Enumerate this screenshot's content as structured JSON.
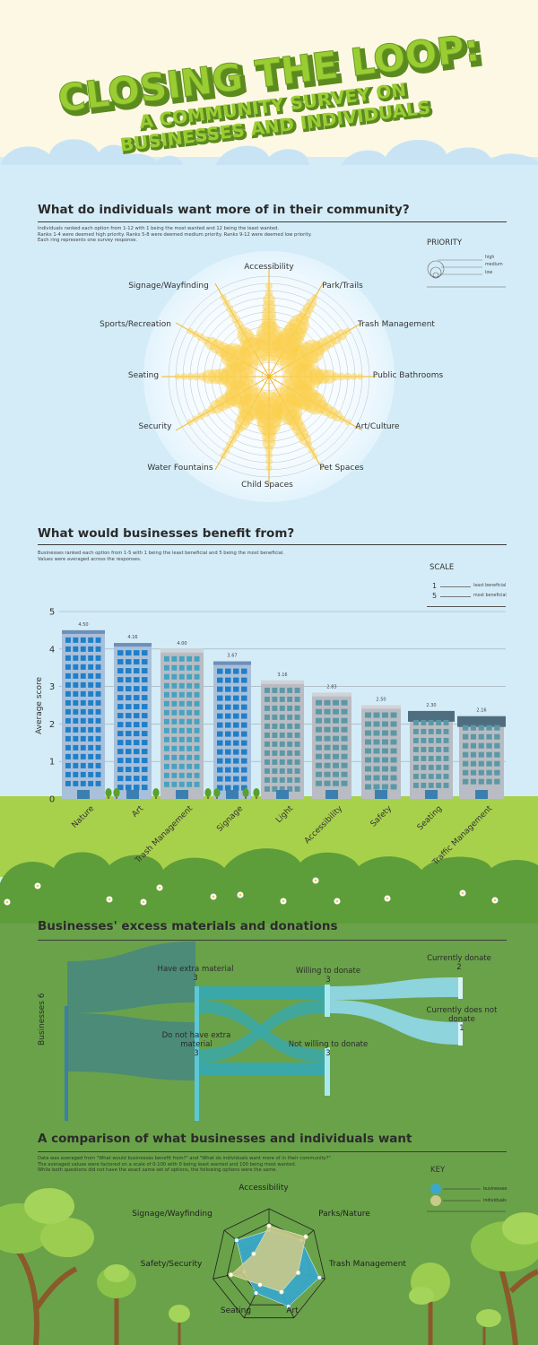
{
  "title": {
    "line1": "CLOSING THE LOOP:",
    "line2": "A COMMUNITY SURVEY ON",
    "line3": "BUSINESSES AND INDIVIDUALS"
  },
  "individuals": {
    "title": "What do individuals want more of in their community?",
    "note": "Individuals ranked each option from 1-12 with 1 being the most wanted and 12 being the least wanted.\nRanks 1-4 were deemed high priority. Ranks 5-8 were deemed medium priority. Ranks 9-12 were deemed low priority.\nEach ring represents one survey response.",
    "key_title": "PRIORITY",
    "key_items": [
      "high",
      "medium",
      "low"
    ],
    "colors": {
      "glow": "#ffffff",
      "petal": "#fcd04b",
      "stroke": "#f2b420"
    }
  },
  "businesses": {
    "title": "What would businesses benefit from?",
    "note": "Businesses ranked each option from 1-5 with 1 being the least beneficial and 5 being the most beneficial.\nValues were averaged across the responses.",
    "key_title": "SCALE",
    "key_items": [
      {
        "num": "1",
        "label": "least beneficial"
      },
      {
        "num": "5",
        "label": "most beneficial"
      }
    ],
    "colors": {
      "ground": "#a8d14b",
      "building_blue": "#1f7fc9",
      "building_grey": "#b9bcc3"
    }
  },
  "donations": {
    "title": "Businesses' excess materials and donations",
    "source_label": "Businesses",
    "source_value": "6",
    "nodes": [
      {
        "label": "Have extra material",
        "value": "3"
      },
      {
        "label": "Do not have extra material",
        "value": "3"
      },
      {
        "label": "Willing to donate",
        "value": "3"
      },
      {
        "label": "Not willing to donate",
        "value": "3"
      },
      {
        "label": "Currently donate",
        "value": "2"
      },
      {
        "label": "Currently does not donate",
        "value": "1"
      }
    ],
    "colors": {
      "bg": "#6aa24a",
      "flow_dark": "#4a8a7a",
      "flow_mid": "#3aa8a8",
      "flow_light": "#8ed4dc"
    }
  },
  "comparison": {
    "title": "A comparison of what businesses and individuals want",
    "note": "Data was averaged from \"What would businesses benefit from?\" and \"What do individuals want more of in their community?\"\nThe averaged values were factored on a scale of 0-100 with 0 being least wanted and 100 being most wanted.\nWhile both questions did not have the exact same set of options, the following options were the same.",
    "key_title": "KEY",
    "key_items": [
      "businesses",
      "individuals"
    ],
    "colors": {
      "businesses": "#3aa8c8",
      "individuals": "#c9c98a"
    }
  },
  "chart_data": [
    {
      "type": "radial",
      "categories": [
        "Accessibility",
        "Park/Trails",
        "Trash Management",
        "Public Bathrooms",
        "Art/Culture",
        "Pet Spaces",
        "Child Spaces",
        "Water Fountains",
        "Security",
        "Seating",
        "Sports/Recreation",
        "Signage/Wayfinding"
      ],
      "series": [
        {
          "name": "high",
          "values": [
            3,
            6,
            4,
            3,
            5,
            3,
            4,
            2,
            2,
            2,
            3,
            1
          ]
        },
        {
          "name": "medium",
          "values": [
            5,
            4,
            5,
            3,
            4,
            5,
            3,
            3,
            4,
            4,
            4,
            3
          ]
        },
        {
          "name": "low",
          "values": [
            2,
            1,
            1,
            5,
            2,
            3,
            4,
            6,
            5,
            5,
            4,
            7
          ]
        }
      ]
    },
    {
      "type": "bar",
      "categories": [
        "Nature",
        "Art",
        "Trash Management",
        "Signage",
        "Light",
        "Accessibility",
        "Safety",
        "Seating",
        "Traffic Management"
      ],
      "values": [
        4.5,
        4.16,
        4.0,
        3.67,
        3.16,
        2.83,
        2.5,
        2.3,
        2.16
      ],
      "labels": [
        "4.50",
        "4.16",
        "4.00",
        "3.67",
        "3.16",
        "2.83",
        "2.50",
        "2.30",
        "2.16"
      ],
      "ylabel": "Average score",
      "yticks": [
        "0",
        "1",
        "2",
        "3",
        "4",
        "5"
      ],
      "ylim": [
        0,
        5
      ],
      "grid": true
    },
    {
      "type": "sankey",
      "flows": [
        {
          "from": "Businesses",
          "to": "Have extra material",
          "value": 3
        },
        {
          "from": "Businesses",
          "to": "Do not have extra material",
          "value": 3
        },
        {
          "from": "Have extra material",
          "to": "Willing to donate",
          "value": 1.5
        },
        {
          "from": "Have extra material",
          "to": "Not willing to donate",
          "value": 1.5
        },
        {
          "from": "Do not have extra material",
          "to": "Willing to donate",
          "value": 1.5
        },
        {
          "from": "Do not have extra material",
          "to": "Not willing to donate",
          "value": 1.5
        },
        {
          "from": "Willing to donate",
          "to": "Currently donate",
          "value": 2
        },
        {
          "from": "Willing to donate",
          "to": "Currently does not donate",
          "value": 1
        }
      ]
    },
    {
      "type": "radar",
      "categories": [
        "Accessibility",
        "Parks/Nature",
        "Trash Management",
        "Art",
        "Seating",
        "Safety/Security",
        "Signage/Wayfinding"
      ],
      "range": [
        0,
        100
      ],
      "series": [
        {
          "name": "businesses",
          "values": [
            62,
            72,
            90,
            78,
            52,
            44,
            72
          ]
        },
        {
          "name": "individuals",
          "values": [
            70,
            82,
            52,
            50,
            36,
            68,
            34
          ]
        }
      ]
    }
  ]
}
